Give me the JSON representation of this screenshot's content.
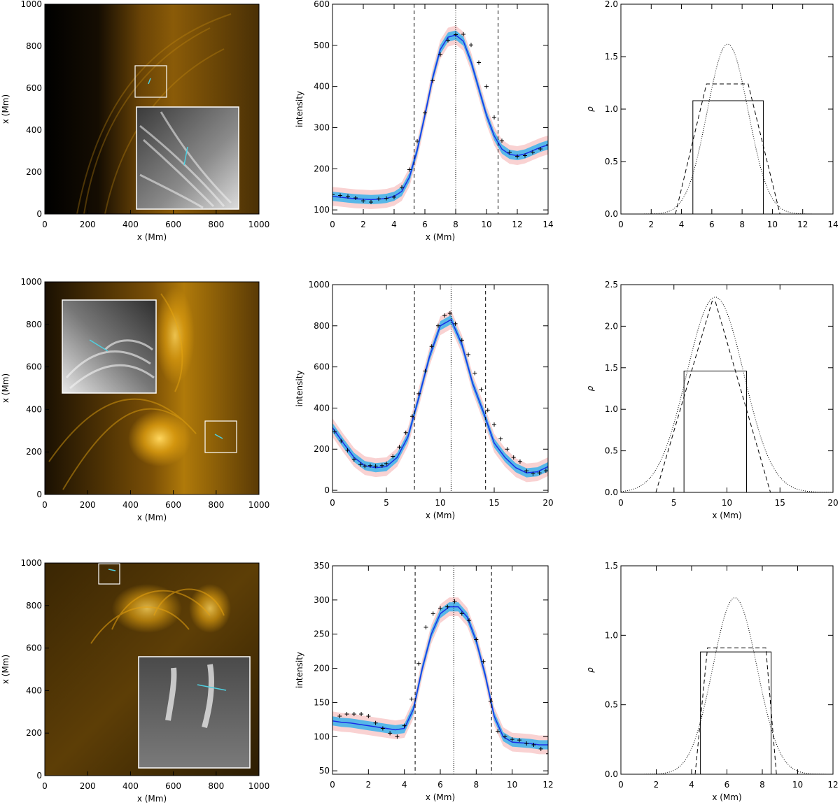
{
  "figure": {
    "image_panels": [
      {
        "xlabel": "x (Mm)",
        "ylabel": "x (Mm)",
        "xticks": [
          "0",
          "200",
          "400",
          "600",
          "800",
          "1000"
        ],
        "yticks": [
          "0",
          "200",
          "400",
          "600",
          "800",
          "1000"
        ],
        "range": [
          0,
          1000
        ],
        "colormap": "gold (AIA 171)",
        "inset": "grayscale zoom of boxed region with cyan cut line"
      },
      {
        "xlabel": "x (Mm)",
        "ylabel": "x (Mm)",
        "xticks": [
          "0",
          "200",
          "400",
          "600",
          "800",
          "1000"
        ],
        "yticks": [
          "0",
          "200",
          "400",
          "600",
          "800",
          "1000"
        ],
        "range": [
          0,
          1000
        ],
        "colormap": "gold (AIA 171)",
        "inset": "grayscale zoom of boxed region with cyan cut line"
      },
      {
        "xlabel": "x (Mm)",
        "ylabel": "x (Mm)",
        "xticks": [
          "0",
          "200",
          "400",
          "600",
          "800",
          "1000"
        ],
        "yticks": [
          "0",
          "200",
          "400",
          "600",
          "800",
          "1000"
        ],
        "range": [
          0,
          1000
        ],
        "colormap": "gold (AIA 171)",
        "inset": "grayscale zoom of boxed region with cyan cut line"
      }
    ],
    "colors": {
      "fit_line": "#1a2ee6",
      "band_inner": "#57b7e8",
      "band_outer": "#f9d2d2",
      "gold": "#d79a10"
    }
  },
  "chart_data": [
    {
      "type": "line",
      "xlabel": "x (Mm)",
      "ylabel": "intensity",
      "xlim": [
        0,
        14
      ],
      "ylim": [
        90,
        600
      ],
      "xticks": [
        0,
        2,
        4,
        6,
        8,
        10,
        12,
        14
      ],
      "yticks": [
        100,
        200,
        300,
        400,
        500,
        600
      ],
      "vlines": {
        "dotted": [
          8.0
        ],
        "dashed": [
          5.3,
          10.75
        ]
      },
      "series": [
        {
          "values_role": "fit",
          "x": [
            0,
            0.5,
            1,
            1.5,
            2,
            2.5,
            3,
            3.5,
            4,
            4.5,
            5,
            5.5,
            6,
            6.5,
            7,
            7.5,
            8,
            8.5,
            9,
            9.5,
            10,
            10.5,
            11,
            11.5,
            12,
            12.5,
            13,
            13.5,
            14
          ],
          "y": [
            133,
            131,
            129,
            127,
            126,
            125,
            126,
            128,
            133,
            145,
            180,
            245,
            330,
            420,
            490,
            520,
            525,
            510,
            460,
            395,
            330,
            280,
            248,
            235,
            232,
            236,
            244,
            252,
            258
          ]
        },
        {
          "values_role": "data",
          "x": [
            0,
            0.5,
            1,
            1.5,
            2,
            2.5,
            3,
            3.5,
            4,
            4.5,
            5,
            5.5,
            6,
            6.5,
            7,
            7.5,
            8,
            8.5,
            9,
            9.5,
            10,
            10.5,
            11,
            11.5,
            12,
            12.5,
            13,
            13.5,
            14
          ],
          "y": [
            137,
            135,
            133,
            129,
            122,
            119,
            127,
            128,
            131,
            155,
            198,
            267,
            336,
            414,
            478,
            512,
            526,
            527,
            501,
            458,
            400,
            325,
            268,
            240,
            230,
            232,
            240,
            248,
            258
          ]
        }
      ]
    },
    {
      "type": "line",
      "xlabel": "",
      "ylabel": "ρ",
      "xlim": [
        0,
        14
      ],
      "ylim": [
        0,
        2.0
      ],
      "xticks": [
        0,
        2,
        4,
        6,
        8,
        10,
        12,
        14
      ],
      "yticks": [
        0.0,
        0.5,
        1.0,
        1.5,
        2.0
      ],
      "profiles": {
        "boxcar": {
          "x": [
            4.75,
            9.4
          ],
          "height": 1.08
        },
        "trapezoid": {
          "x": [
            3.6,
            5.65,
            8.4,
            10.5
          ],
          "height": 1.24
        },
        "gaussian": {
          "center": 7.05,
          "peak": 1.62,
          "sigma": 1.35
        }
      }
    },
    {
      "type": "line",
      "xlabel": "x (Mm)",
      "ylabel": "intensity",
      "xlim": [
        0,
        20
      ],
      "ylim": [
        -10,
        1000
      ],
      "xticks": [
        0,
        5,
        10,
        15,
        20
      ],
      "yticks": [
        0,
        200,
        400,
        600,
        800,
        1000
      ],
      "vlines": {
        "dotted": [
          11.0
        ],
        "dashed": [
          7.6,
          14.2
        ]
      },
      "series": [
        {
          "values_role": "fit",
          "x": [
            0,
            1,
            2,
            3,
            4,
            5,
            6,
            7,
            8,
            9,
            10,
            11,
            12,
            13,
            14,
            15,
            16,
            17,
            18,
            19,
            20
          ],
          "y": [
            305,
            230,
            160,
            120,
            110,
            115,
            160,
            260,
            450,
            650,
            800,
            830,
            710,
            520,
            380,
            230,
            160,
            110,
            85,
            90,
            115
          ]
        },
        {
          "values_role": "data",
          "x": [
            0.2,
            0.8,
            1.4,
            2.0,
            2.6,
            3.0,
            3.5,
            4.0,
            4.6,
            5.0,
            5.6,
            6.2,
            6.8,
            7.4,
            8.0,
            8.6,
            9.2,
            9.8,
            10.4,
            10.9,
            11.4,
            12.0,
            12.6,
            13.2,
            13.8,
            14.4,
            15.0,
            15.6,
            16.2,
            16.8,
            17.4,
            18.0,
            18.6,
            19.2,
            19.8
          ],
          "y": [
            285,
            240,
            195,
            150,
            125,
            118,
            120,
            118,
            120,
            130,
            165,
            210,
            280,
            360,
            470,
            580,
            700,
            800,
            850,
            860,
            810,
            730,
            660,
            570,
            490,
            390,
            320,
            250,
            200,
            160,
            140,
            95,
            80,
            85,
            95
          ]
        }
      ]
    },
    {
      "type": "line",
      "xlabel": "x (Mm)",
      "ylabel": "ρ",
      "xlim": [
        0,
        20
      ],
      "ylim": [
        0,
        2.5
      ],
      "xticks": [
        0,
        5,
        10,
        15,
        20
      ],
      "yticks": [
        0.0,
        0.5,
        1.0,
        1.5,
        2.0,
        2.5
      ],
      "profiles": {
        "boxcar": {
          "x": [
            5.95,
            11.85
          ],
          "height": 1.46
        },
        "trapezoid": {
          "x": [
            3.3,
            8.6,
            8.9,
            14.1
          ],
          "height": 2.3
        },
        "gaussian": {
          "center": 8.9,
          "peak": 2.35,
          "sigma": 2.7
        }
      }
    },
    {
      "type": "line",
      "xlabel": "x (Mm)",
      "ylabel": "intensity",
      "xlim": [
        0,
        12
      ],
      "ylim": [
        45,
        350
      ],
      "xticks": [
        0,
        2,
        4,
        6,
        8,
        10,
        12
      ],
      "yticks": [
        50,
        100,
        150,
        200,
        250,
        300,
        350
      ],
      "vlines": {
        "dotted": [
          6.75
        ],
        "dashed": [
          4.6,
          8.85
        ]
      },
      "series": [
        {
          "values_role": "fit",
          "x": [
            0,
            0.5,
            1,
            1.5,
            2,
            2.5,
            3,
            3.5,
            4,
            4.5,
            5,
            5.5,
            6,
            6.5,
            7,
            7.5,
            8,
            8.5,
            9,
            9.5,
            10,
            10.5,
            11,
            11.5,
            12
          ],
          "y": [
            123,
            121,
            120,
            118,
            116,
            114,
            112,
            110,
            112,
            140,
            200,
            250,
            280,
            290,
            290,
            275,
            240,
            190,
            130,
            100,
            92,
            91,
            90,
            88,
            88
          ]
        },
        {
          "values_role": "data",
          "x": [
            0.4,
            0.8,
            1.2,
            1.6,
            2.0,
            2.4,
            2.8,
            3.2,
            3.6,
            4.0,
            4.4,
            4.8,
            5.2,
            5.6,
            6.0,
            6.4,
            6.8,
            7.2,
            7.6,
            8.0,
            8.4,
            8.8,
            9.2,
            9.6,
            10.0,
            10.4,
            10.8,
            11.2,
            11.6,
            12.0
          ],
          "y": [
            130,
            133,
            133,
            133,
            130,
            120,
            112,
            105,
            100,
            116,
            155,
            207,
            260,
            280,
            288,
            290,
            298,
            280,
            270,
            242,
            210,
            152,
            108,
            100,
            96,
            95,
            90,
            88,
            82,
            75
          ]
        }
      ]
    },
    {
      "type": "line",
      "xlabel": "x (Mm)",
      "ylabel": "ρ",
      "xlim": [
        0,
        12
      ],
      "ylim": [
        0,
        1.5
      ],
      "xticks": [
        0,
        2,
        4,
        6,
        8,
        10,
        12
      ],
      "yticks": [
        0.0,
        0.5,
        1.0,
        1.5
      ],
      "profiles": {
        "boxcar": {
          "x": [
            4.5,
            8.5
          ],
          "height": 0.88
        },
        "trapezoid": {
          "x": [
            4.2,
            4.9,
            8.2,
            8.8
          ],
          "height": 0.91
        },
        "gaussian": {
          "center": 6.45,
          "peak": 1.27,
          "sigma": 1.25
        }
      }
    }
  ]
}
